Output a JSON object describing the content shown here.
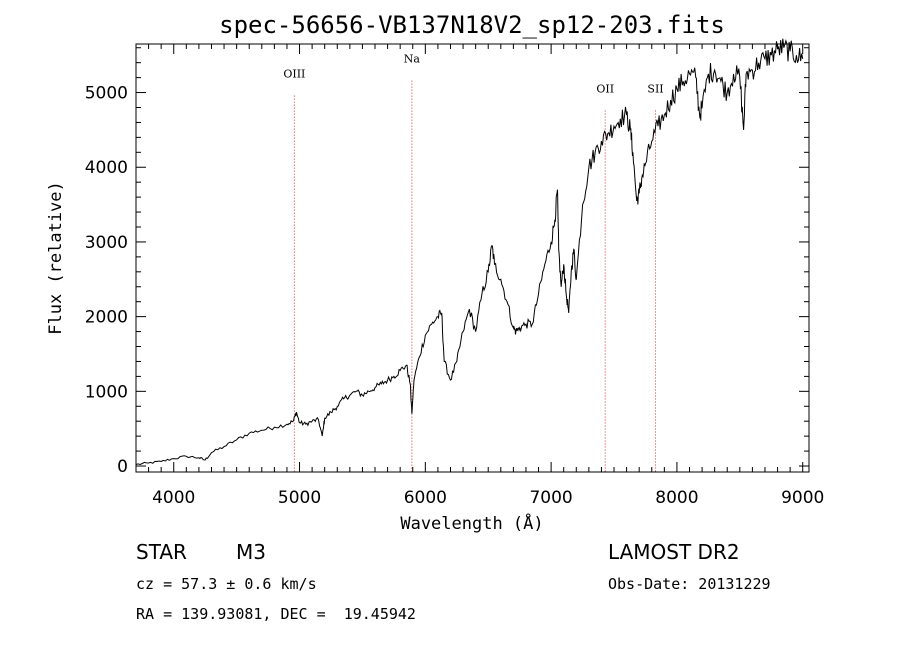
{
  "chart_data": {
    "type": "line",
    "title": "spec-56656-VB137N18V2_sp12-203.fits",
    "xlabel": "Wavelength (Å)",
    "ylabel": "Flux (relative)",
    "xlim": [
      3700,
      9050
    ],
    "ylim": [
      -80,
      5650
    ],
    "x_ticks": [
      4000,
      5000,
      6000,
      7000,
      8000,
      9000
    ],
    "y_ticks": [
      0,
      1000,
      2000,
      3000,
      4000,
      5000
    ],
    "x_tick_labels": [
      "4000",
      "5000",
      "6000",
      "7000",
      "8000",
      "9000"
    ],
    "y_tick_labels": [
      "0",
      "1000",
      "2000",
      "3000",
      "4000",
      "5000"
    ],
    "line_color": "#000000",
    "marker_color": "#d03030",
    "lines": [
      {
        "name": "OIII",
        "wavelength": 4959,
        "label_flux": 5200
      },
      {
        "name": "Na",
        "wavelength": 5893,
        "label_flux": 5400
      },
      {
        "name": "OII",
        "wavelength": 7430,
        "label_flux": 5000
      },
      {
        "name": "SII",
        "wavelength": 7830,
        "label_flux": 5000
      }
    ],
    "series": [
      {
        "x": [
          3700,
          3800,
          3900,
          4000,
          4100,
          4200,
          4250,
          4300,
          4400,
          4500,
          4600,
          4700,
          4800,
          4900,
          4950,
          4975,
          5000,
          5050,
          5100,
          5150,
          5180,
          5200,
          5250,
          5300,
          5350,
          5400,
          5450,
          5500,
          5550,
          5600,
          5650,
          5700,
          5750,
          5800,
          5850,
          5880,
          5893,
          5910,
          5950,
          6000,
          6050,
          6100,
          6130,
          6150,
          6200,
          6250,
          6300,
          6350,
          6400,
          6450,
          6500,
          6530,
          6550,
          6600,
          6650,
          6700,
          6720,
          6750,
          6800,
          6850,
          6900,
          6950,
          7000,
          7030,
          7050,
          7060,
          7080,
          7100,
          7120,
          7140,
          7160,
          7180,
          7200,
          7250,
          7300,
          7350,
          7400,
          7450,
          7500,
          7550,
          7600,
          7630,
          7650,
          7680,
          7700,
          7720,
          7750,
          7800,
          7850,
          7900,
          7950,
          8000,
          8050,
          8100,
          8150,
          8180,
          8200,
          8250,
          8300,
          8350,
          8400,
          8450,
          8500,
          8530,
          8550,
          8600,
          8650,
          8700,
          8750,
          8800,
          8850,
          8900,
          8950,
          9000
        ],
        "y": [
          20,
          40,
          60,
          100,
          130,
          110,
          80,
          180,
          260,
          350,
          440,
          480,
          520,
          560,
          600,
          720,
          580,
          560,
          600,
          620,
          400,
          640,
          720,
          800,
          900,
          950,
          1000,
          950,
          1000,
          1050,
          1100,
          1150,
          1200,
          1280,
          1350,
          1100,
          700,
          1150,
          1450,
          1750,
          1900,
          2000,
          2050,
          1400,
          1150,
          1400,
          1800,
          2100,
          1800,
          2300,
          2600,
          2950,
          2700,
          2500,
          2200,
          1850,
          1800,
          1850,
          1900,
          1900,
          2300,
          2700,
          3000,
          3300,
          3700,
          2900,
          2400,
          2700,
          2300,
          2050,
          2600,
          2900,
          2500,
          3500,
          4000,
          4200,
          4350,
          4450,
          4550,
          4650,
          4700,
          4500,
          4200,
          3550,
          3650,
          3850,
          4050,
          4350,
          4550,
          4700,
          4900,
          5050,
          5150,
          5250,
          5200,
          4700,
          4800,
          5250,
          5300,
          5150,
          5000,
          5250,
          5200,
          4500,
          5250,
          5300,
          5400,
          5450,
          5500,
          5580,
          5600,
          5550,
          5500,
          5450
        ]
      }
    ]
  },
  "info": {
    "object_class": "STAR",
    "subclass": "M3",
    "survey": "LAMOST DR2",
    "cz": "cz = 57.3 ± 0.6 km/s",
    "obs_date": "Obs-Date: 20131229",
    "coords": "RA = 139.93081, DEC =  19.45942"
  }
}
